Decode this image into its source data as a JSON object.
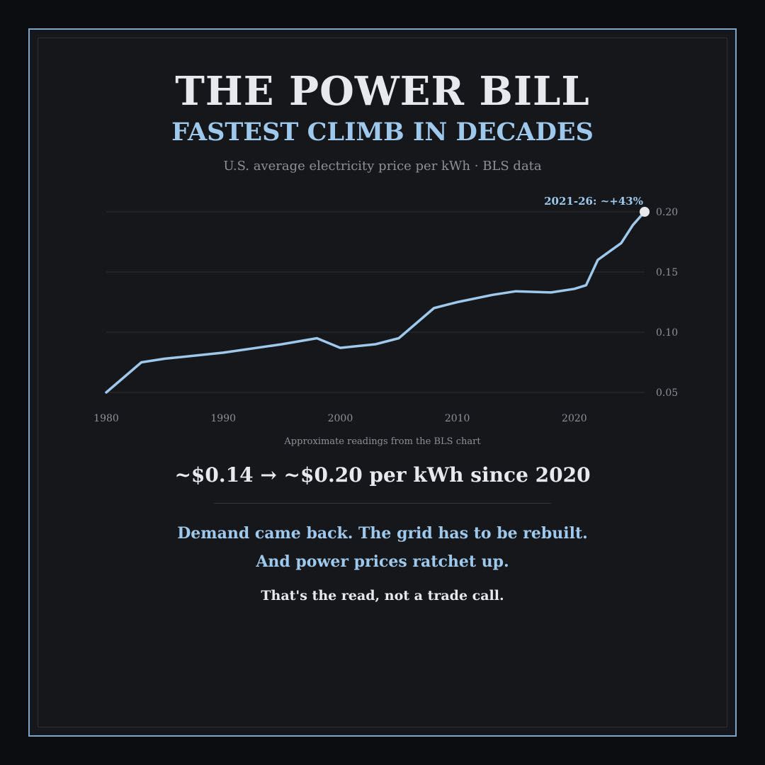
{
  "header": {
    "title": "THE POWER BILL",
    "subtitle": "FASTEST CLIMB IN DECADES",
    "source": "U.S. average electricity price per kWh  ·  BLS data"
  },
  "chart_data": {
    "type": "line",
    "title": "",
    "xlabel": "",
    "ylabel": "",
    "xlim": [
      1980,
      2026
    ],
    "ylim": [
      0.05,
      0.2
    ],
    "x_ticks": [
      1980,
      1990,
      2000,
      2010,
      2020
    ],
    "y_ticks": [
      0.05,
      0.1,
      0.15,
      0.2
    ],
    "y_tick_labels": [
      "0.05",
      "0.10",
      "0.15",
      "0.20"
    ],
    "grid": "horizontal",
    "line_color": "#9ec8ec",
    "endpoint_color": "#e8e9ee",
    "series": [
      {
        "x": [
          1980,
          1983,
          1985,
          1990,
          1995,
          1998,
          2000,
          2003,
          2005,
          2008,
          2010,
          2013,
          2015,
          2018,
          2020,
          2021,
          2022,
          2023,
          2024,
          2025,
          2026
        ],
        "y": [
          0.05,
          0.075,
          0.078,
          0.083,
          0.09,
          0.095,
          0.087,
          0.09,
          0.095,
          0.12,
          0.125,
          0.131,
          0.134,
          0.133,
          0.136,
          0.139,
          0.16,
          0.167,
          0.174,
          0.189,
          0.2
        ]
      }
    ],
    "annotation": {
      "text": "2021-26: ~+43%",
      "x": 2026,
      "y": 0.2
    }
  },
  "footer": {
    "note": "Approximate readings from the BLS chart",
    "headline": "~$0.14  →  ~$0.20 per kWh since 2020",
    "line1": "Demand came back. The grid has to be rebuilt.",
    "line2": "And power prices ratchet up.",
    "disclaimer": "That's the read, not a trade call."
  },
  "colors": {
    "background": "#0c0d10",
    "panel": "#16171b",
    "frame": "#7fa6c8",
    "accent": "#9ec8ec",
    "text": "#e8e9ee",
    "muted": "#8e9098"
  }
}
